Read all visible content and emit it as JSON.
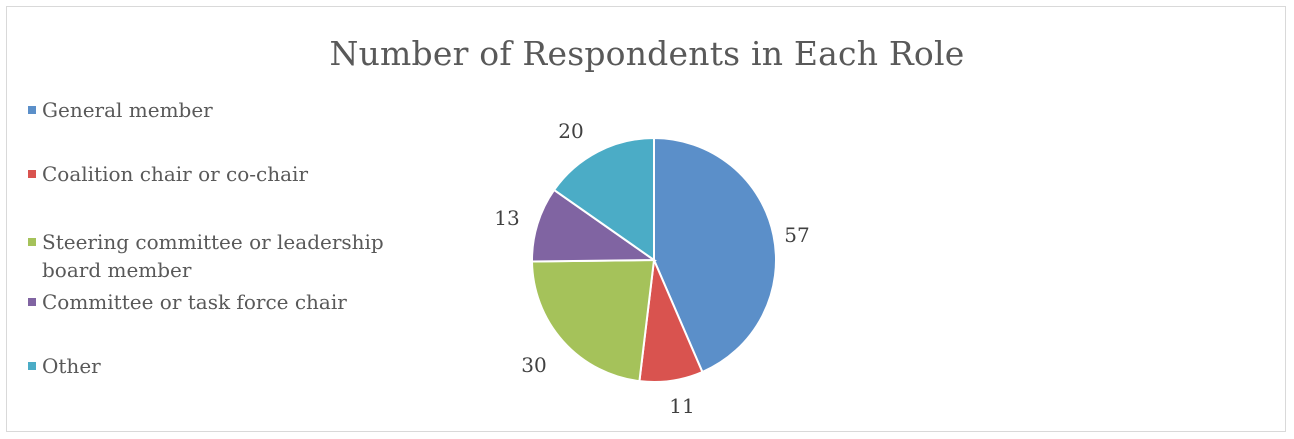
{
  "chart_data": {
    "type": "pie",
    "title": "Number of Respondents in Each Role",
    "categories": [
      "General member",
      "Coalition chair or co-chair",
      "Steering committee or leadership board member",
      "Committee or task force chair",
      "Other"
    ],
    "values": [
      57,
      11,
      30,
      13,
      20
    ],
    "colors": [
      "#5b8fc9",
      "#d9534f",
      "#a5c25a",
      "#8064a2",
      "#4bacc6"
    ],
    "legend_position": "left",
    "data_labels": [
      "57",
      "11",
      "30",
      "13",
      "20"
    ]
  }
}
